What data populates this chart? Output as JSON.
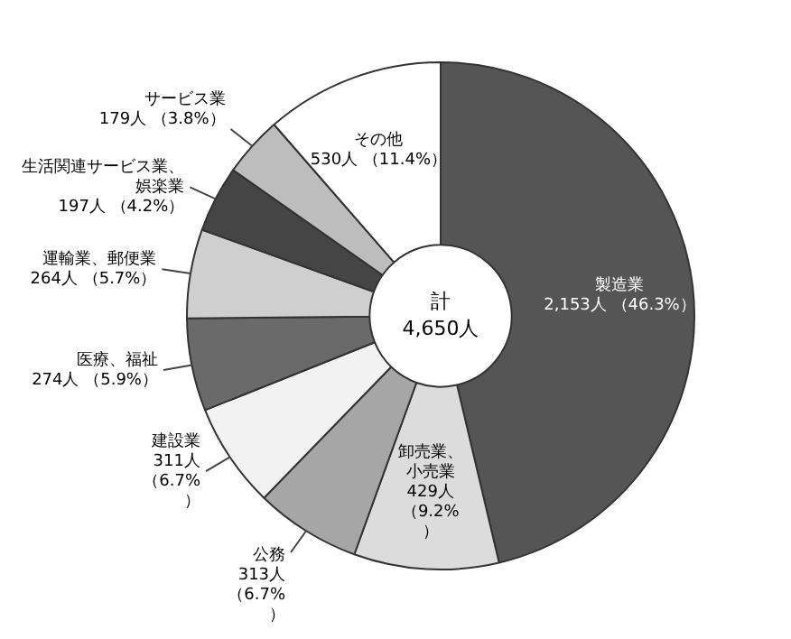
{
  "chart_data": {
    "type": "donut",
    "categories": [
      "製造業",
      "卸売業、小売業",
      "公務",
      "建設業",
      "医療、福祉",
      "運輸業、郵便業",
      "生活関連サービス業、娯楽業",
      "サービス業",
      "その他"
    ],
    "values": [
      2153,
      429,
      313,
      311,
      274,
      264,
      197,
      179,
      530
    ],
    "value_labels": [
      "2,153人 （46.3%）",
      "429人（9.2%）",
      "313人（6.7%）",
      "311人（6.7%）",
      "274人 （5.9%）",
      "264人 （5.7%）",
      "197人 （4.2%）",
      "179人 （3.8%）",
      "530人 （11.4%）"
    ],
    "colors": [
      "#555555",
      "#dcdcdc",
      "#a6a6a6",
      "#f2f2f2",
      "#6a6a6a",
      "#cfcfcf",
      "#454545",
      "#bdbdbd",
      "#ffffff"
    ],
    "annotations": [
      "計",
      "4,650人"
    ],
    "legend": false
  }
}
